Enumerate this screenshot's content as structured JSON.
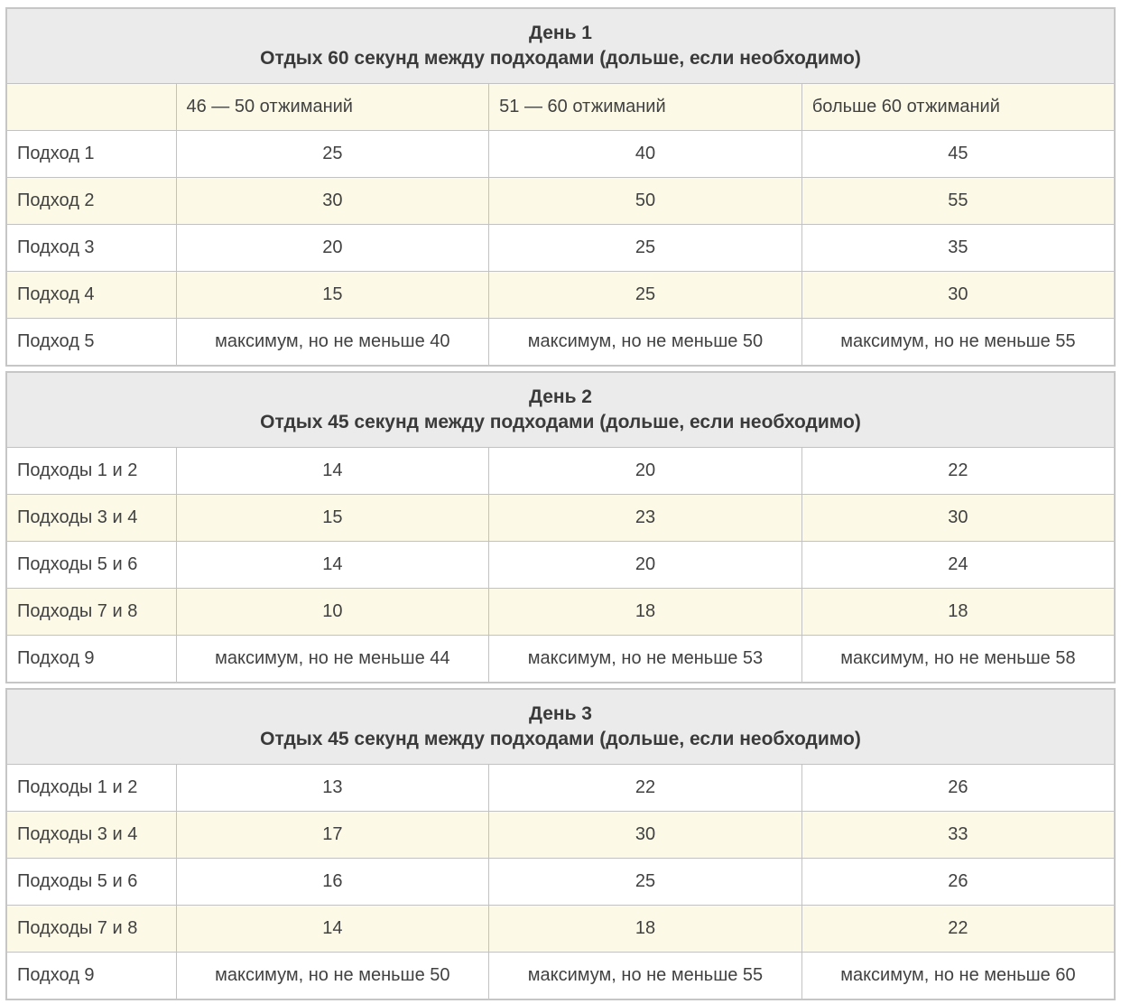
{
  "colors": {
    "section_header_bg": "#ebebeb",
    "stripe_bg": "#fcfae6",
    "row_bg": "#ffffff",
    "border_outer": "#c6c6c6",
    "border_inner": "#c2c2c2",
    "text_color": "#414141",
    "header_text_color": "#3a3a3a"
  },
  "column_headers": [
    "",
    "46 — 50 отжиманий",
    "51 — 60 отжиманий",
    "больше 60 отжиманий"
  ],
  "days": [
    {
      "title": "День 1",
      "subtitle": "Отдых 60 секунд между подходами (дольше, если необходимо)",
      "has_column_headers": true,
      "rows": [
        {
          "label": "Подход 1",
          "values": [
            "25",
            "40",
            "45"
          ]
        },
        {
          "label": "Подход 2",
          "values": [
            "30",
            "50",
            "55"
          ]
        },
        {
          "label": "Подход 3",
          "values": [
            "20",
            "25",
            "35"
          ]
        },
        {
          "label": "Подход 4",
          "values": [
            "15",
            "25",
            "30"
          ]
        },
        {
          "label": "Подход 5",
          "values": [
            "максимум, но не меньше 40",
            "максимум, но не меньше 50",
            "максимум, но не меньше 55"
          ]
        }
      ]
    },
    {
      "title": "День 2",
      "subtitle": "Отдых 45 секунд между подходами (дольше, если необходимо)",
      "has_column_headers": false,
      "rows": [
        {
          "label": "Подходы 1 и 2",
          "values": [
            "14",
            "20",
            "22"
          ]
        },
        {
          "label": "Подходы 3 и 4",
          "values": [
            "15",
            "23",
            "30"
          ]
        },
        {
          "label": "Подходы 5 и 6",
          "values": [
            "14",
            "20",
            "24"
          ]
        },
        {
          "label": "Подходы 7 и 8",
          "values": [
            "10",
            "18",
            "18"
          ]
        },
        {
          "label": "Подход 9",
          "values": [
            "максимум, но не меньше 44",
            "максимум, но не меньше 53",
            "максимум, но не меньше 58"
          ]
        }
      ]
    },
    {
      "title": "День 3",
      "subtitle": "Отдых 45 секунд между подходами (дольше, если необходимо)",
      "has_column_headers": false,
      "rows": [
        {
          "label": "Подходы 1 и 2",
          "values": [
            "13",
            "22",
            "26"
          ]
        },
        {
          "label": "Подходы 3 и 4",
          "values": [
            "17",
            "30",
            "33"
          ]
        },
        {
          "label": "Подходы 5 и 6",
          "values": [
            "16",
            "25",
            "26"
          ]
        },
        {
          "label": "Подходы 7 и 8",
          "values": [
            "14",
            "18",
            "22"
          ]
        },
        {
          "label": "Подход 9",
          "values": [
            "максимум, но не меньше 50",
            "максимум, но не меньше 55",
            "максимум, но не меньше 60"
          ]
        }
      ]
    }
  ]
}
